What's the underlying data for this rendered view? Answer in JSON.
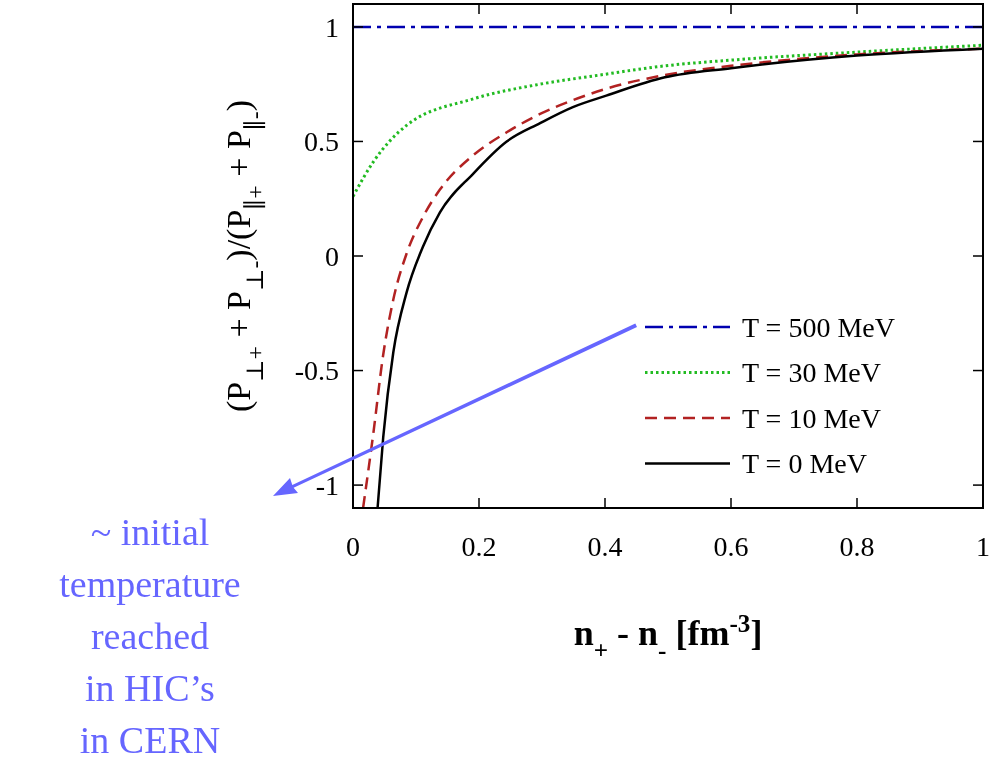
{
  "chart_data": {
    "type": "line",
    "xlabel": "n$_{+}$ - n$_{-}$ [fm$^{-3}$]",
    "ylabel": "(P$_{⊥+}$ + P$_{⊥-}$)/(P$_{∥+}$ + P$_{∥-}$)",
    "xlim": [
      0,
      1
    ],
    "ylim": [
      -1.1,
      1.1
    ],
    "xticks": [
      0,
      0.2,
      0.4,
      0.6,
      0.8,
      1
    ],
    "yticks": [
      -1,
      -0.5,
      0,
      0.5,
      1
    ],
    "grid": false,
    "legend": "bottom right",
    "annotations": [
      "~ initial temperature reached in HIC’s in CERN"
    ],
    "series": [
      {
        "name": "T = 500 MeV",
        "color": "#0000b0",
        "line_style": "dashdot",
        "x": [
          0,
          1
        ],
        "values": [
          1,
          1
        ]
      },
      {
        "name": "T = 30 MeV",
        "color": "#22bb22",
        "line_style": "dotted",
        "x": [
          0,
          0.032,
          0.085,
          0.191,
          0.297,
          0.392,
          0.495,
          0.6,
          0.8,
          1
        ],
        "values": [
          0.26,
          0.41,
          0.57,
          0.686,
          0.75,
          0.79,
          0.83,
          0.855,
          0.89,
          0.92
        ]
      },
      {
        "name": "T = 10 MeV",
        "color": "#b22222",
        "line_style": "dashed",
        "x": [
          0.016,
          0.032,
          0.048,
          0.064,
          0.085,
          0.111,
          0.138,
          0.191,
          0.244,
          0.297,
          0.349,
          0.402,
          0.495,
          0.6,
          0.8,
          1
        ],
        "values": [
          -1.1,
          -0.78,
          -0.43,
          -0.19,
          0.01,
          0.17,
          0.29,
          0.44,
          0.54,
          0.62,
          0.68,
          0.73,
          0.79,
          0.83,
          0.88,
          0.905
        ]
      },
      {
        "name": "T = 0 MeV",
        "color": "#000000",
        "line_style": "solid",
        "x": [
          0.039,
          0.048,
          0.064,
          0.085,
          0.111,
          0.138,
          0.191,
          0.244,
          0.297,
          0.349,
          0.402,
          0.495,
          0.6,
          0.8,
          1
        ],
        "values": [
          -1.1,
          -0.79,
          -0.42,
          -0.16,
          0.04,
          0.19,
          0.36,
          0.5,
          0.58,
          0.65,
          0.7,
          0.78,
          0.82,
          0.875,
          0.905
        ]
      }
    ]
  }
}
